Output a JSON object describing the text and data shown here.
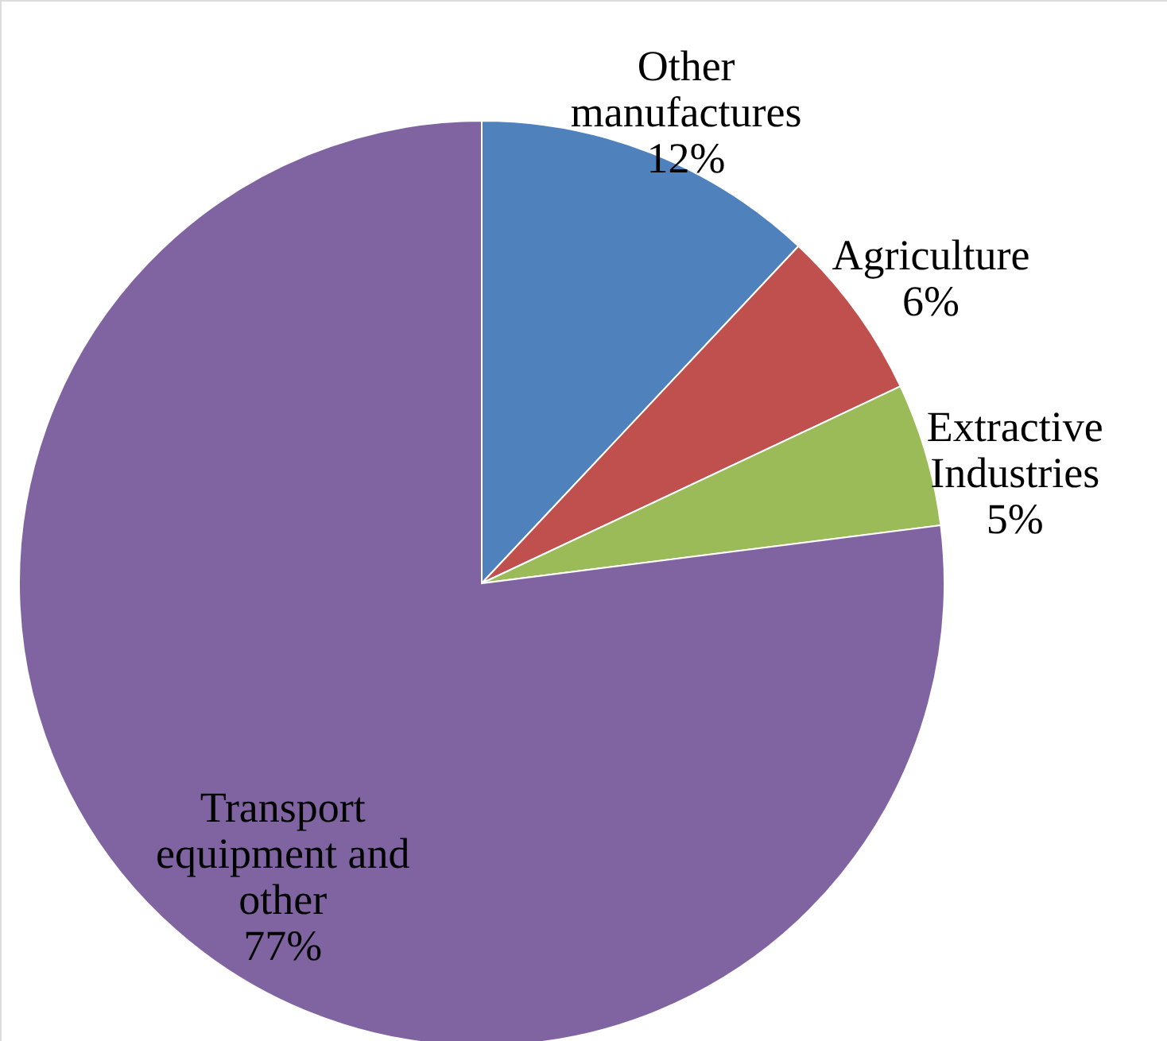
{
  "chart_data": {
    "type": "pie",
    "categories": [
      "Other manufactures",
      "Agriculture",
      "Extractive Industries",
      "Transport equipment and other"
    ],
    "values": [
      12,
      6,
      5,
      77
    ],
    "value_labels": [
      "12%",
      "6%",
      "5%",
      "77%"
    ],
    "colors": [
      "#4f81bd",
      "#c0504d",
      "#9bbb59",
      "#8064a2"
    ],
    "legend": false
  }
}
